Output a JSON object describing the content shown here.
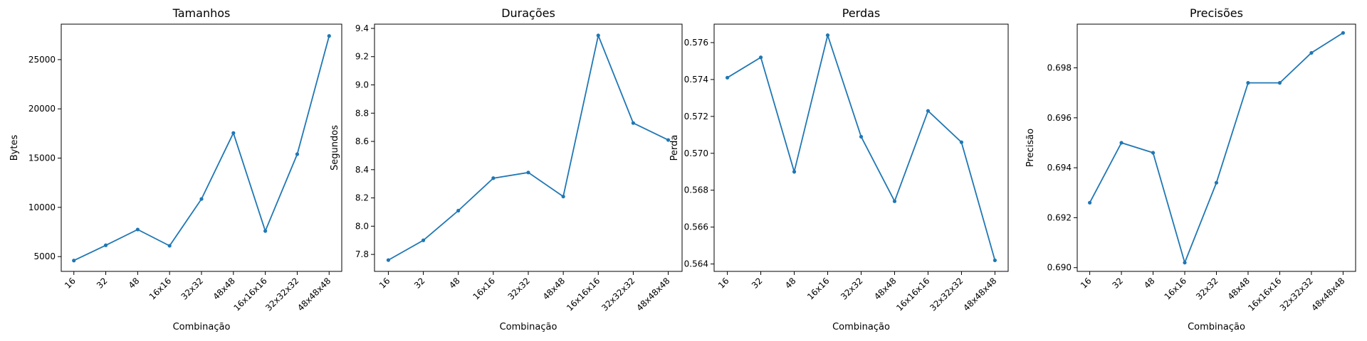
{
  "chart_data": [
    {
      "type": "line",
      "title": "Tamanhos",
      "xlabel": "Combinação",
      "ylabel": "Bytes",
      "categories": [
        "16",
        "32",
        "48",
        "16x16",
        "32x32",
        "48x48",
        "16x16x16",
        "32x32x32",
        "48x48x48"
      ],
      "values": [
        4600,
        6150,
        7750,
        6100,
        10850,
        17550,
        7600,
        15400,
        27400
      ],
      "ylim": [
        3500,
        28600
      ],
      "yticks": [
        5000,
        10000,
        15000,
        20000,
        25000
      ],
      "ytick_labels": [
        "5000",
        "10000",
        "15000",
        "20000",
        "25000"
      ],
      "color": "#1f77b4",
      "grid": false,
      "legend": "none"
    },
    {
      "type": "line",
      "title": "Durações",
      "xlabel": "Combinação",
      "ylabel": "Segundos",
      "categories": [
        "16",
        "32",
        "48",
        "16x16",
        "32x32",
        "48x48",
        "16x16x16",
        "32x32x32",
        "48x48x48"
      ],
      "values": [
        7.76,
        7.9,
        8.11,
        8.34,
        8.38,
        8.21,
        9.35,
        8.73,
        8.61
      ],
      "ylim": [
        7.68,
        9.43
      ],
      "yticks": [
        7.8,
        8.0,
        8.2,
        8.4,
        8.6,
        8.8,
        9.0,
        9.2,
        9.4
      ],
      "ytick_labels": [
        "7.8",
        "8.0",
        "8.2",
        "8.4",
        "8.6",
        "8.8",
        "9.0",
        "9.2",
        "9.4"
      ],
      "color": "#1f77b4",
      "grid": false,
      "legend": "none"
    },
    {
      "type": "line",
      "title": "Perdas",
      "xlabel": "Combinação",
      "ylabel": "Perda",
      "categories": [
        "16",
        "32",
        "48",
        "16x16",
        "32x32",
        "48x48",
        "16x16x16",
        "32x32x32",
        "48x48x48"
      ],
      "values": [
        0.5741,
        0.5752,
        0.569,
        0.5764,
        0.5709,
        0.5674,
        0.5723,
        0.5706,
        0.5642
      ],
      "ylim": [
        0.5636,
        0.577
      ],
      "yticks": [
        0.564,
        0.566,
        0.568,
        0.57,
        0.572,
        0.574,
        0.576
      ],
      "ytick_labels": [
        "0.564",
        "0.566",
        "0.568",
        "0.570",
        "0.572",
        "0.574",
        "0.576"
      ],
      "color": "#1f77b4",
      "grid": false,
      "legend": "none"
    },
    {
      "type": "line",
      "title": "Precisões",
      "xlabel": "Combinação",
      "ylabel": "Precisão",
      "categories": [
        "16",
        "32",
        "48",
        "16x16",
        "32x32",
        "48x48",
        "16x16x16",
        "32x32x32",
        "48x48x48"
      ],
      "values": [
        0.6926,
        0.695,
        0.6946,
        0.6902,
        0.6934,
        0.6974,
        0.6974,
        0.6986,
        0.6994
      ],
      "ylim": [
        0.68985,
        0.69975
      ],
      "yticks": [
        0.69,
        0.692,
        0.694,
        0.696,
        0.698
      ],
      "ytick_labels": [
        "0.690",
        "0.692",
        "0.694",
        "0.696",
        "0.698"
      ],
      "color": "#1f77b4",
      "grid": false,
      "legend": "none"
    }
  ]
}
